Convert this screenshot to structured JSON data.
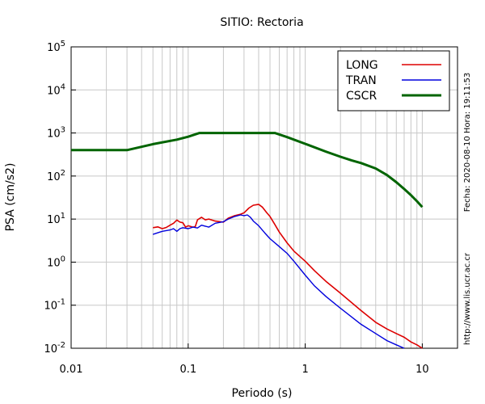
{
  "chart_data": {
    "type": "line",
    "title": "SITIO: Rectoria",
    "xlabel": "Periodo (s)",
    "ylabel": "PSA (cm/s2)",
    "xscale": "log",
    "yscale": "log",
    "xlim": [
      0.01,
      20
    ],
    "ylim": [
      0.01,
      100000
    ],
    "grid": true,
    "legend_position": "top-right",
    "x_ticks": [
      {
        "value": 0.01,
        "label": "0.01"
      },
      {
        "value": 0.1,
        "label": "0.1"
      },
      {
        "value": 1,
        "label": "1"
      },
      {
        "value": 10,
        "label": "10"
      }
    ],
    "y_ticks": [
      {
        "value": 0.01,
        "base": "10",
        "exp": "-2"
      },
      {
        "value": 0.1,
        "base": "10",
        "exp": "-1"
      },
      {
        "value": 1,
        "base": "10",
        "exp": "0"
      },
      {
        "value": 10,
        "base": "10",
        "exp": "1"
      },
      {
        "value": 100,
        "base": "10",
        "exp": "2"
      },
      {
        "value": 1000,
        "base": "10",
        "exp": "3"
      },
      {
        "value": 10000,
        "base": "10",
        "exp": "4"
      },
      {
        "value": 100000,
        "base": "10",
        "exp": "5"
      }
    ],
    "series": [
      {
        "name": "LONG",
        "color": "#dd0000",
        "x": [
          0.05,
          0.055,
          0.06,
          0.065,
          0.07,
          0.075,
          0.08,
          0.085,
          0.09,
          0.095,
          0.1,
          0.11,
          0.115,
          0.12,
          0.13,
          0.14,
          0.15,
          0.17,
          0.2,
          0.22,
          0.25,
          0.28,
          0.3,
          0.33,
          0.36,
          0.4,
          0.43,
          0.47,
          0.5,
          0.55,
          0.6,
          0.7,
          0.8,
          1.0,
          1.2,
          1.5,
          2.0,
          3.0,
          4.0,
          5.0,
          6.0,
          7.0,
          8.0,
          9.0,
          10.0
        ],
        "y": [
          6.3,
          6.6,
          6.0,
          6.4,
          7.2,
          8.0,
          9.5,
          8.5,
          8.2,
          6.5,
          7.0,
          6.5,
          6.7,
          9.6,
          11.0,
          9.6,
          10.0,
          9.0,
          8.5,
          10.5,
          12.0,
          13.0,
          14.0,
          18.0,
          21.0,
          22.0,
          19.0,
          14.0,
          11.5,
          7.5,
          5.0,
          2.8,
          1.8,
          1.05,
          0.63,
          0.36,
          0.19,
          0.075,
          0.04,
          0.028,
          0.022,
          0.018,
          0.014,
          0.012,
          0.01
        ]
      },
      {
        "name": "TRAN",
        "color": "#0000dd",
        "x": [
          0.05,
          0.055,
          0.06,
          0.07,
          0.075,
          0.08,
          0.085,
          0.09,
          0.1,
          0.11,
          0.12,
          0.13,
          0.15,
          0.17,
          0.2,
          0.22,
          0.25,
          0.28,
          0.3,
          0.32,
          0.34,
          0.36,
          0.4,
          0.45,
          0.5,
          0.6,
          0.7,
          0.8,
          1.0,
          1.2,
          1.5,
          2.0,
          3.0,
          4.0,
          5.0,
          6.0,
          7.0
        ],
        "y": [
          4.4,
          4.8,
          5.2,
          5.6,
          6.0,
          5.2,
          6.0,
          6.3,
          6.0,
          6.5,
          6.2,
          7.2,
          6.5,
          8.0,
          8.7,
          10.0,
          11.5,
          12.5,
          12.0,
          12.5,
          11.0,
          9.0,
          7.0,
          4.8,
          3.5,
          2.3,
          1.6,
          1.05,
          0.5,
          0.28,
          0.16,
          0.085,
          0.036,
          0.022,
          0.015,
          0.012,
          0.01
        ]
      },
      {
        "name": "CSCR",
        "color": "#006400",
        "x": [
          0.01,
          0.03,
          0.05,
          0.08,
          0.1,
          0.125,
          0.2,
          0.3,
          0.4,
          0.5,
          0.55,
          0.7,
          1.0,
          1.5,
          2.0,
          2.5,
          3.0,
          4.0,
          5.0,
          6.0,
          7.0,
          8.0,
          9.0,
          10.0
        ],
        "y": [
          400,
          400,
          550,
          700,
          820,
          1000,
          1000,
          1000,
          1000,
          1000,
          1000,
          800,
          560,
          370,
          280,
          230,
          200,
          150,
          105,
          72,
          50,
          36,
          26,
          19
        ]
      }
    ]
  },
  "side_text": {
    "fecha": "Fecha: 2020-08-10  Hora: 19:11:53",
    "url": "http://www.lis.ucr.ac.cr"
  }
}
